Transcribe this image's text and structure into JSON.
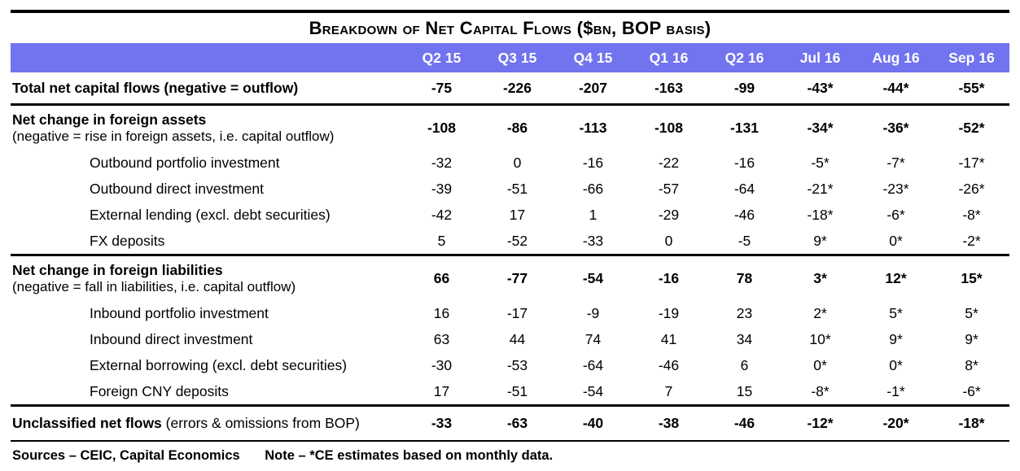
{
  "chart_data": {
    "type": "table",
    "title": "Breakdown of Net Capital Flows ($bn, BOP basis)",
    "columns": [
      "Q2 15",
      "Q3 15",
      "Q4 15",
      "Q1 16",
      "Q2 16",
      "Jul 16",
      "Aug 16",
      "Sep 16"
    ],
    "rows": [
      {
        "name": "row-total-net-capital-flows",
        "label": "Total net capital flows (negative = outflow)",
        "style": "total",
        "values": [
          "-75",
          "-226",
          "-207",
          "-163",
          "-99",
          "-43*",
          "-44*",
          "-55*"
        ]
      },
      {
        "name": "row-net-change-foreign-assets",
        "label": "Net change in foreign assets",
        "sublabel": "(negative = rise in foreign assets, i.e. capital outflow)",
        "style": "section",
        "values": [
          "-108",
          "-86",
          "-113",
          "-108",
          "-131",
          "-34*",
          "-36*",
          "-52*"
        ]
      },
      {
        "name": "row-outbound-portfolio-investment",
        "label": "Outbound portfolio investment",
        "style": "item",
        "values": [
          "-32",
          "0",
          "-16",
          "-22",
          "-16",
          "-5*",
          "-7*",
          "-17*"
        ]
      },
      {
        "name": "row-outbound-direct-investment",
        "label": "Outbound direct investment",
        "style": "item",
        "values": [
          "-39",
          "-51",
          "-66",
          "-57",
          "-64",
          "-21*",
          "-23*",
          "-26*"
        ]
      },
      {
        "name": "row-external-lending",
        "label": "External lending (excl. debt securities)",
        "style": "item",
        "values": [
          "-42",
          "17",
          "1",
          "-29",
          "-46",
          "-18*",
          "-6*",
          "-8*"
        ]
      },
      {
        "name": "row-fx-deposits",
        "label": "FX deposits",
        "style": "item",
        "values": [
          "5",
          "-52",
          "-33",
          "0",
          "-5",
          "9*",
          "0*",
          "-2*"
        ]
      },
      {
        "name": "row-net-change-foreign-liabilities",
        "label": "Net change in foreign liabilities",
        "sublabel": "(negative = fall in liabilities, i.e. capital outflow)",
        "style": "section",
        "values": [
          "66",
          "-77",
          "-54",
          "-16",
          "78",
          "3*",
          "12*",
          "15*"
        ]
      },
      {
        "name": "row-inbound-portfolio-investment",
        "label": "Inbound portfolio investment",
        "style": "item",
        "values": [
          "16",
          "-17",
          "-9",
          "-19",
          "23",
          "2*",
          "5*",
          "5*"
        ]
      },
      {
        "name": "row-inbound-direct-investment",
        "label": "Inbound direct investment",
        "style": "item",
        "values": [
          "63",
          "44",
          "74",
          "41",
          "34",
          "10*",
          "9*",
          "9*"
        ]
      },
      {
        "name": "row-external-borrowing",
        "label": "External borrowing (excl. debt securities)",
        "style": "item",
        "values": [
          "-30",
          "-53",
          "-64",
          "-46",
          "6",
          "0*",
          "0*",
          "8*"
        ]
      },
      {
        "name": "row-foreign-cny-deposits",
        "label": "Foreign CNY deposits",
        "style": "item",
        "values": [
          "17",
          "-51",
          "-54",
          "7",
          "15",
          "-8*",
          "-1*",
          "-6*"
        ]
      },
      {
        "name": "row-unclassified-net-flows",
        "label": "Unclassified net flows",
        "suffix": "(errors & omissions from BOP)",
        "style": "unclassified",
        "values": [
          "-33",
          "-63",
          "-40",
          "-38",
          "-46",
          "-12*",
          "-20*",
          "-18*"
        ]
      }
    ],
    "layout": {
      "header_bg": "#7173ef",
      "header_text_color": "#ffffff",
      "rule_color": "#000000"
    }
  },
  "footer": {
    "sources": "Sources – CEIC, Capital Economics",
    "note": "Note – *CE estimates based on monthly data."
  }
}
